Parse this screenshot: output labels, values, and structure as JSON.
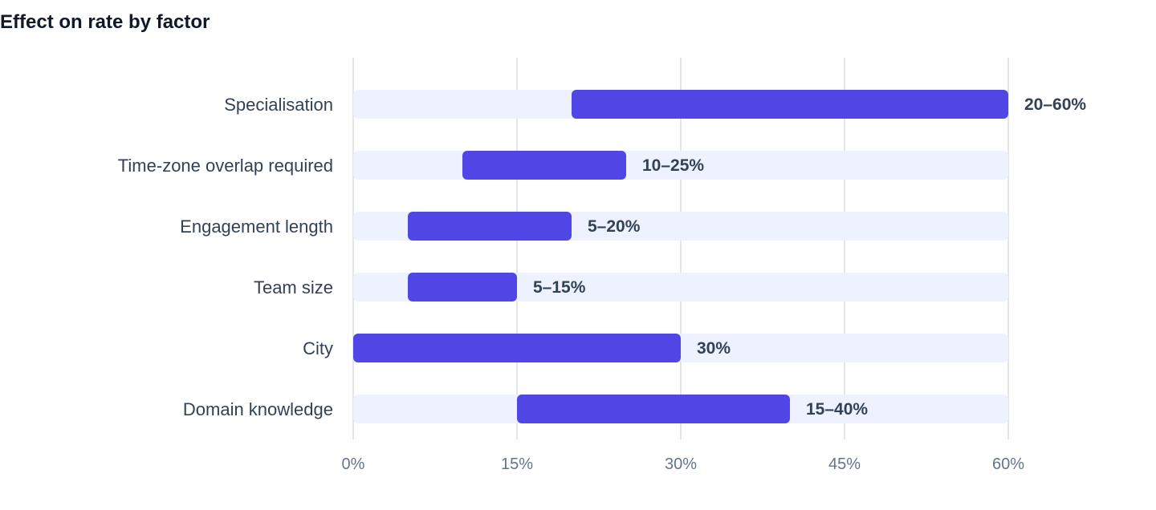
{
  "chart_data": {
    "type": "bar",
    "orientation": "horizontal",
    "subtype": "range",
    "title": "Effect on rate by factor",
    "xlabel": "",
    "ylabel": "",
    "xlim": [
      0,
      60
    ],
    "x_ticks": [
      "0%",
      "15%",
      "30%",
      "45%",
      "60%"
    ],
    "x_tick_values": [
      0,
      15,
      30,
      45,
      60
    ],
    "grid": "vertical",
    "categories": [
      "Specialisation",
      "Time-zone overlap required",
      "Engagement length",
      "Team size",
      "City",
      "Domain knowledge"
    ],
    "ranges": [
      {
        "low": 20,
        "high": 60,
        "label": "20–60%"
      },
      {
        "low": 10,
        "high": 25,
        "label": "10–25%"
      },
      {
        "low": 5,
        "high": 20,
        "label": "5–20%"
      },
      {
        "low": 5,
        "high": 15,
        "label": "5–15%"
      },
      {
        "low": 0,
        "high": 30,
        "label": "30%"
      },
      {
        "low": 15,
        "high": 40,
        "label": "15–40%"
      }
    ],
    "colors": {
      "bar": "#4f46e5",
      "track": "#eef2ff",
      "grid": "#e2e5ea"
    }
  }
}
